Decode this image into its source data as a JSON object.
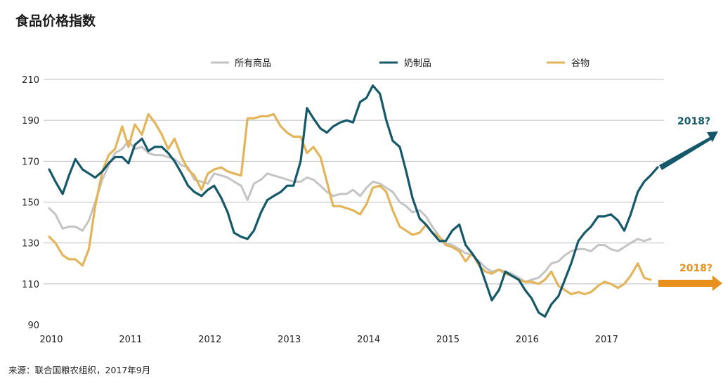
{
  "chart_data": {
    "type": "line",
    "title": "食品价格指数",
    "source": "来源：联合国粮农组织，2017年9月",
    "xlabel": "",
    "ylabel": "",
    "xlim": [
      2010,
      2017.75
    ],
    "ylim": [
      90,
      210
    ],
    "yticks": [
      90,
      110,
      130,
      150,
      170,
      190,
      210
    ],
    "xticks": [
      "2010",
      "2011",
      "2012",
      "2013",
      "2014",
      "2015",
      "2016",
      "2017"
    ],
    "grid": "horizontal",
    "legend_position": "top-center",
    "series": [
      {
        "name": "所有商品",
        "color": "#c4c4c4",
        "points": [
          [
            2010.0,
            147
          ],
          [
            2010.08,
            144
          ],
          [
            2010.17,
            137
          ],
          [
            2010.25,
            138
          ],
          [
            2010.33,
            138
          ],
          [
            2010.42,
            136
          ],
          [
            2010.5,
            141
          ],
          [
            2010.58,
            150
          ],
          [
            2010.67,
            161
          ],
          [
            2010.75,
            168
          ],
          [
            2010.83,
            174
          ],
          [
            2010.92,
            176
          ],
          [
            2011.0,
            180
          ],
          [
            2011.08,
            176
          ],
          [
            2011.17,
            177
          ],
          [
            2011.25,
            174
          ],
          [
            2011.33,
            173
          ],
          [
            2011.42,
            173
          ],
          [
            2011.5,
            172
          ],
          [
            2011.58,
            171
          ],
          [
            2011.67,
            168
          ],
          [
            2011.75,
            167
          ],
          [
            2011.83,
            161
          ],
          [
            2011.92,
            160
          ],
          [
            2012.0,
            159
          ],
          [
            2012.08,
            164
          ],
          [
            2012.17,
            163
          ],
          [
            2012.25,
            162
          ],
          [
            2012.33,
            160
          ],
          [
            2012.42,
            158
          ],
          [
            2012.5,
            151
          ],
          [
            2012.58,
            159
          ],
          [
            2012.67,
            161
          ],
          [
            2012.75,
            164
          ],
          [
            2012.83,
            163
          ],
          [
            2012.92,
            162
          ],
          [
            2013.0,
            161
          ],
          [
            2013.08,
            160
          ],
          [
            2013.17,
            160
          ],
          [
            2013.25,
            162
          ],
          [
            2013.33,
            161
          ],
          [
            2013.42,
            158
          ],
          [
            2013.5,
            155
          ],
          [
            2013.58,
            153
          ],
          [
            2013.67,
            154
          ],
          [
            2013.75,
            154
          ],
          [
            2013.83,
            156
          ],
          [
            2013.92,
            153
          ],
          [
            2014.0,
            157
          ],
          [
            2014.08,
            160
          ],
          [
            2014.17,
            159
          ],
          [
            2014.25,
            157
          ],
          [
            2014.33,
            155
          ],
          [
            2014.42,
            150
          ],
          [
            2014.5,
            148
          ],
          [
            2014.58,
            145
          ],
          [
            2014.67,
            146
          ],
          [
            2014.75,
            143
          ],
          [
            2014.83,
            138
          ],
          [
            2014.92,
            133
          ],
          [
            2015.0,
            130
          ],
          [
            2015.08,
            129
          ],
          [
            2015.17,
            127
          ],
          [
            2015.25,
            125
          ],
          [
            2015.33,
            124
          ],
          [
            2015.42,
            121
          ],
          [
            2015.5,
            118
          ],
          [
            2015.58,
            116
          ],
          [
            2015.67,
            117
          ],
          [
            2015.75,
            116
          ],
          [
            2015.83,
            115
          ],
          [
            2015.92,
            113
          ],
          [
            2016.0,
            111
          ],
          [
            2016.08,
            112
          ],
          [
            2016.17,
            113
          ],
          [
            2016.25,
            116
          ],
          [
            2016.33,
            120
          ],
          [
            2016.42,
            121
          ],
          [
            2016.5,
            124
          ],
          [
            2016.58,
            126
          ],
          [
            2016.67,
            127
          ],
          [
            2016.75,
            127
          ],
          [
            2016.83,
            126
          ],
          [
            2016.92,
            129
          ],
          [
            2017.0,
            129
          ],
          [
            2017.08,
            127
          ],
          [
            2017.17,
            126
          ],
          [
            2017.25,
            128
          ],
          [
            2017.33,
            130
          ],
          [
            2017.42,
            132
          ],
          [
            2017.5,
            131
          ],
          [
            2017.58,
            132
          ]
        ]
      },
      {
        "name": "奶制品",
        "color": "#14586a",
        "points": [
          [
            2010.0,
            166
          ],
          [
            2010.08,
            160
          ],
          [
            2010.17,
            154
          ],
          [
            2010.25,
            163
          ],
          [
            2010.33,
            171
          ],
          [
            2010.42,
            166
          ],
          [
            2010.5,
            164
          ],
          [
            2010.58,
            162
          ],
          [
            2010.67,
            165
          ],
          [
            2010.75,
            169
          ],
          [
            2010.83,
            172
          ],
          [
            2010.92,
            172
          ],
          [
            2011.0,
            169
          ],
          [
            2011.08,
            178
          ],
          [
            2011.17,
            181
          ],
          [
            2011.25,
            175
          ],
          [
            2011.33,
            177
          ],
          [
            2011.42,
            177
          ],
          [
            2011.5,
            174
          ],
          [
            2011.58,
            170
          ],
          [
            2011.67,
            164
          ],
          [
            2011.75,
            158
          ],
          [
            2011.83,
            155
          ],
          [
            2011.92,
            153
          ],
          [
            2012.0,
            156
          ],
          [
            2012.08,
            158
          ],
          [
            2012.17,
            152
          ],
          [
            2012.25,
            145
          ],
          [
            2012.33,
            135
          ],
          [
            2012.42,
            133
          ],
          [
            2012.5,
            132
          ],
          [
            2012.58,
            136
          ],
          [
            2012.67,
            145
          ],
          [
            2012.75,
            151
          ],
          [
            2012.83,
            153
          ],
          [
            2012.92,
            155
          ],
          [
            2013.0,
            158
          ],
          [
            2013.08,
            158
          ],
          [
            2013.17,
            170
          ],
          [
            2013.25,
            196
          ],
          [
            2013.33,
            191
          ],
          [
            2013.42,
            186
          ],
          [
            2013.5,
            184
          ],
          [
            2013.58,
            187
          ],
          [
            2013.67,
            189
          ],
          [
            2013.75,
            190
          ],
          [
            2013.83,
            189
          ],
          [
            2013.92,
            199
          ],
          [
            2014.0,
            201
          ],
          [
            2014.08,
            207
          ],
          [
            2014.17,
            203
          ],
          [
            2014.25,
            190
          ],
          [
            2014.33,
            180
          ],
          [
            2014.42,
            177
          ],
          [
            2014.5,
            165
          ],
          [
            2014.58,
            152
          ],
          [
            2014.67,
            142
          ],
          [
            2014.75,
            139
          ],
          [
            2014.83,
            135
          ],
          [
            2014.92,
            131
          ],
          [
            2015.0,
            131
          ],
          [
            2015.08,
            136
          ],
          [
            2015.17,
            139
          ],
          [
            2015.25,
            129
          ],
          [
            2015.33,
            125
          ],
          [
            2015.42,
            120
          ],
          [
            2015.5,
            111
          ],
          [
            2015.58,
            102
          ],
          [
            2015.67,
            107
          ],
          [
            2015.75,
            116
          ],
          [
            2015.83,
            114
          ],
          [
            2015.92,
            112
          ],
          [
            2016.0,
            107
          ],
          [
            2016.08,
            103
          ],
          [
            2016.17,
            96
          ],
          [
            2016.25,
            94
          ],
          [
            2016.33,
            100
          ],
          [
            2016.42,
            104
          ],
          [
            2016.5,
            112
          ],
          [
            2016.58,
            120
          ],
          [
            2016.67,
            131
          ],
          [
            2016.75,
            135
          ],
          [
            2016.83,
            138
          ],
          [
            2016.92,
            143
          ],
          [
            2017.0,
            143
          ],
          [
            2017.08,
            144
          ],
          [
            2017.17,
            141
          ],
          [
            2017.25,
            136
          ],
          [
            2017.33,
            144
          ],
          [
            2017.42,
            155
          ],
          [
            2017.5,
            160
          ],
          [
            2017.58,
            163
          ],
          [
            2017.67,
            167
          ]
        ]
      },
      {
        "name": "谷物",
        "color": "#e3b45a",
        "points": [
          [
            2010.0,
            133
          ],
          [
            2010.08,
            130
          ],
          [
            2010.17,
            124
          ],
          [
            2010.25,
            122
          ],
          [
            2010.33,
            122
          ],
          [
            2010.42,
            119
          ],
          [
            2010.5,
            127
          ],
          [
            2010.58,
            148
          ],
          [
            2010.67,
            165
          ],
          [
            2010.75,
            173
          ],
          [
            2010.83,
            176
          ],
          [
            2010.92,
            187
          ],
          [
            2011.0,
            177
          ],
          [
            2011.08,
            188
          ],
          [
            2011.17,
            183
          ],
          [
            2011.25,
            193
          ],
          [
            2011.33,
            189
          ],
          [
            2011.42,
            183
          ],
          [
            2011.5,
            176
          ],
          [
            2011.58,
            181
          ],
          [
            2011.67,
            172
          ],
          [
            2011.75,
            166
          ],
          [
            2011.83,
            163
          ],
          [
            2011.92,
            156
          ],
          [
            2012.0,
            164
          ],
          [
            2012.08,
            166
          ],
          [
            2012.17,
            167
          ],
          [
            2012.25,
            165
          ],
          [
            2012.33,
            164
          ],
          [
            2012.42,
            163
          ],
          [
            2012.5,
            191
          ],
          [
            2012.58,
            191
          ],
          [
            2012.67,
            192
          ],
          [
            2012.75,
            192
          ],
          [
            2012.83,
            193
          ],
          [
            2012.92,
            187
          ],
          [
            2013.0,
            184
          ],
          [
            2013.08,
            182
          ],
          [
            2013.17,
            182
          ],
          [
            2013.25,
            174
          ],
          [
            2013.33,
            177
          ],
          [
            2013.42,
            172
          ],
          [
            2013.5,
            160
          ],
          [
            2013.58,
            148
          ],
          [
            2013.67,
            148
          ],
          [
            2013.75,
            147
          ],
          [
            2013.83,
            146
          ],
          [
            2013.92,
            144
          ],
          [
            2014.0,
            149
          ],
          [
            2014.08,
            157
          ],
          [
            2014.17,
            158
          ],
          [
            2014.25,
            155
          ],
          [
            2014.33,
            146
          ],
          [
            2014.42,
            138
          ],
          [
            2014.5,
            136
          ],
          [
            2014.58,
            134
          ],
          [
            2014.67,
            135
          ],
          [
            2014.75,
            139
          ],
          [
            2014.83,
            135
          ],
          [
            2014.92,
            133
          ],
          [
            2015.0,
            129
          ],
          [
            2015.08,
            128
          ],
          [
            2015.17,
            126
          ],
          [
            2015.25,
            121
          ],
          [
            2015.33,
            125
          ],
          [
            2015.42,
            119
          ],
          [
            2015.5,
            116
          ],
          [
            2015.58,
            115
          ],
          [
            2015.67,
            117
          ],
          [
            2015.75,
            115
          ],
          [
            2015.83,
            114
          ],
          [
            2015.92,
            112
          ],
          [
            2016.0,
            111
          ],
          [
            2016.08,
            111
          ],
          [
            2016.17,
            110
          ],
          [
            2016.25,
            112
          ],
          [
            2016.33,
            116
          ],
          [
            2016.42,
            109
          ],
          [
            2016.5,
            107
          ],
          [
            2016.58,
            105
          ],
          [
            2016.67,
            106
          ],
          [
            2016.75,
            105
          ],
          [
            2016.83,
            106
          ],
          [
            2016.92,
            109
          ],
          [
            2017.0,
            111
          ],
          [
            2017.08,
            110
          ],
          [
            2017.17,
            108
          ],
          [
            2017.25,
            110
          ],
          [
            2017.33,
            114
          ],
          [
            2017.42,
            120
          ],
          [
            2017.5,
            113
          ],
          [
            2017.58,
            112
          ]
        ]
      }
    ],
    "annotations": [
      {
        "text": "2018?",
        "series": "奶制品",
        "color": "#14586a",
        "direction": "up"
      },
      {
        "text": "2018?",
        "series": "谷物",
        "color": "#e8901e",
        "direction": "flat"
      }
    ]
  }
}
